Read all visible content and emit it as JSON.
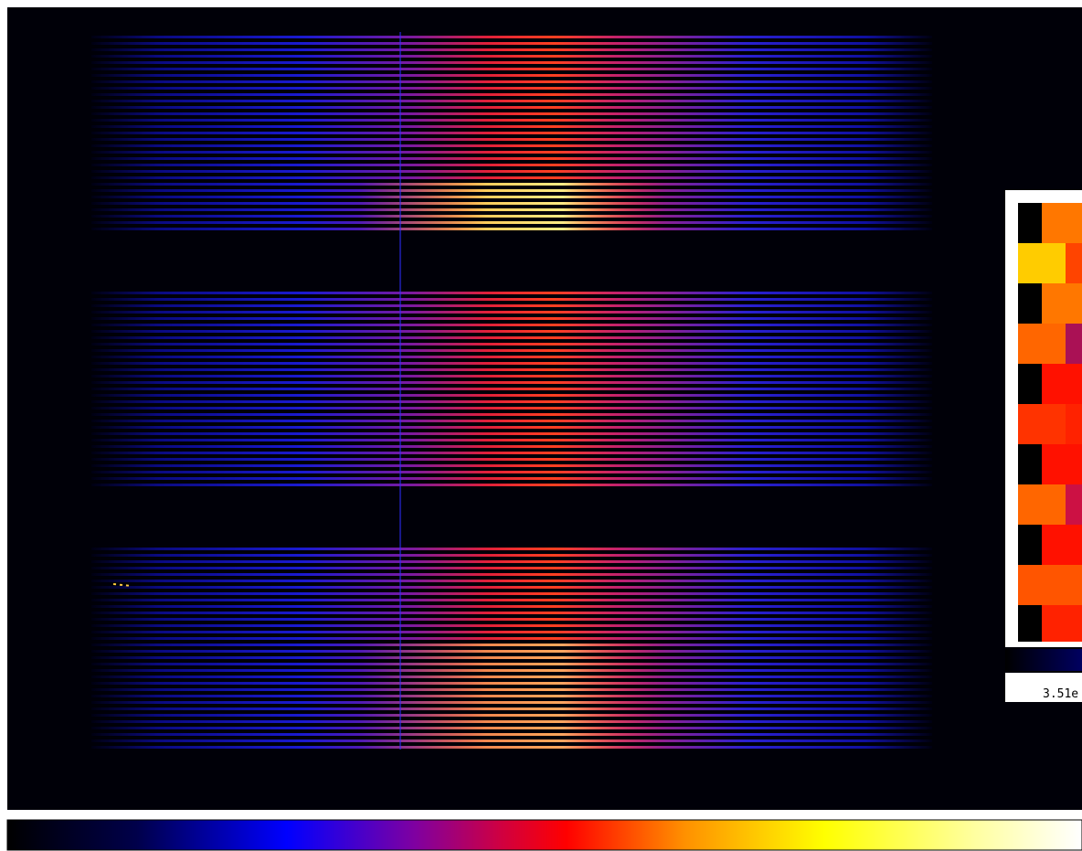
{
  "magnifier": {
    "value_label": "3.51e"
  }
}
